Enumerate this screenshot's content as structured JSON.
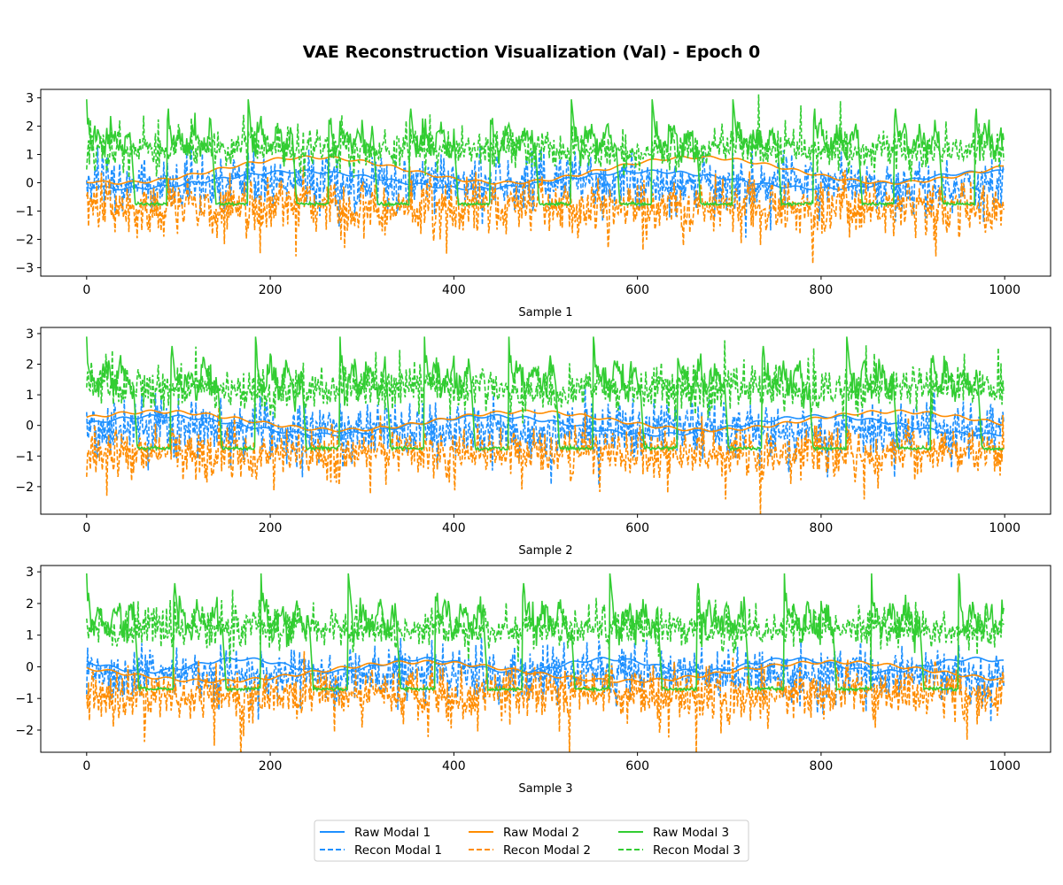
{
  "chart_data": {
    "type": "line",
    "title": "VAE Reconstruction Visualization (Val) - Epoch 0",
    "grid": false,
    "legend_placement": "bottom-center",
    "legend": {
      "columns": [
        [
          "Raw Modal 1",
          "Recon Modal 1"
        ],
        [
          "Raw Modal 2",
          "Recon Modal 2"
        ],
        [
          "Raw Modal 3",
          "Recon Modal 3"
        ]
      ]
    },
    "series_styles": [
      {
        "name": "Raw Modal 1",
        "color": "#1e90ff",
        "dash": "solid"
      },
      {
        "name": "Recon Modal 1",
        "color": "#1e90ff",
        "dash": "dashed"
      },
      {
        "name": "Raw Modal 2",
        "color": "#ff8c00",
        "dash": "solid"
      },
      {
        "name": "Recon Modal 2",
        "color": "#ff8c00",
        "dash": "dashed"
      },
      {
        "name": "Raw Modal 3",
        "color": "#32cd32",
        "dash": "solid"
      },
      {
        "name": "Recon Modal 3",
        "color": "#32cd32",
        "dash": "dashed"
      }
    ],
    "subplots": [
      {
        "xlabel": "Sample 1",
        "xlim": [
          -50,
          1050
        ],
        "ylim": [
          -3.3,
          3.3
        ],
        "xticks": [
          0,
          200,
          400,
          600,
          800,
          1000
        ],
        "yticks": [
          -3,
          -2,
          -1,
          0,
          1,
          2,
          3
        ],
        "n_points": 1000,
        "series": [
          {
            "name": "Raw Modal 1",
            "mean": 0.1,
            "amplitude": 0.3,
            "period": 380,
            "noise": 0.05
          },
          {
            "name": "Recon Modal 1",
            "mean": 0.0,
            "amplitude": 0.05,
            "period": 300,
            "noise": 0.55
          },
          {
            "name": "Raw Modal 2",
            "mean": 0.45,
            "amplitude": 0.45,
            "period": 420,
            "noise": 0.05
          },
          {
            "name": "Recon Modal 2",
            "mean": -0.85,
            "amplitude": 0.05,
            "period": 300,
            "noise": 0.55
          },
          {
            "name": "Raw Modal 3",
            "low": -0.75,
            "high": 1.5,
            "spike": 2.95,
            "pulse_period": 88
          },
          {
            "name": "Recon Modal 3",
            "mean": 1.2,
            "amplitude": 0.05,
            "period": 300,
            "noise": 0.4
          }
        ]
      },
      {
        "xlabel": "Sample 2",
        "xlim": [
          -50,
          1050
        ],
        "ylim": [
          -2.9,
          3.2
        ],
        "xticks": [
          0,
          200,
          400,
          600,
          800,
          1000
        ],
        "yticks": [
          -2,
          -1,
          0,
          1,
          2,
          3
        ],
        "n_points": 1000,
        "series": [
          {
            "name": "Raw Modal 1",
            "mean": 0.0,
            "amplitude": 0.3,
            "period": 360,
            "noise": 0.05
          },
          {
            "name": "Recon Modal 1",
            "mean": -0.1,
            "amplitude": 0.05,
            "period": 300,
            "noise": 0.55
          },
          {
            "name": "Raw Modal 2",
            "mean": 0.15,
            "amplitude": 0.3,
            "period": 400,
            "noise": 0.05
          },
          {
            "name": "Recon Modal 2",
            "mean": -0.9,
            "amplitude": 0.05,
            "period": 300,
            "noise": 0.5
          },
          {
            "name": "Raw Modal 3",
            "low": -0.75,
            "high": 1.5,
            "spike": 2.9,
            "pulse_period": 92
          },
          {
            "name": "Recon Modal 3",
            "mean": 1.2,
            "amplitude": 0.05,
            "period": 300,
            "noise": 0.4
          }
        ]
      },
      {
        "xlabel": "Sample 3",
        "xlim": [
          -50,
          1050
        ],
        "ylim": [
          -2.7,
          3.2
        ],
        "xticks": [
          0,
          200,
          400,
          600,
          800,
          1000
        ],
        "yticks": [
          -2,
          -1,
          0,
          1,
          2,
          3
        ],
        "n_points": 1000,
        "series": [
          {
            "name": "Raw Modal 1",
            "mean": 0.05,
            "amplitude": 0.2,
            "period": 200,
            "noise": 0.05
          },
          {
            "name": "Recon Modal 1",
            "mean": -0.2,
            "amplitude": 0.05,
            "period": 300,
            "noise": 0.5
          },
          {
            "name": "Raw Modal 2",
            "mean": -0.15,
            "amplitude": 0.3,
            "period": 450,
            "noise": 0.05
          },
          {
            "name": "Recon Modal 2",
            "mean": -0.85,
            "amplitude": 0.05,
            "period": 300,
            "noise": 0.5
          },
          {
            "name": "Raw Modal 3",
            "low": -0.7,
            "high": 1.5,
            "spike": 2.95,
            "pulse_period": 95
          },
          {
            "name": "Recon Modal 3",
            "mean": 1.2,
            "amplitude": 0.05,
            "period": 300,
            "noise": 0.35
          }
        ]
      }
    ]
  }
}
